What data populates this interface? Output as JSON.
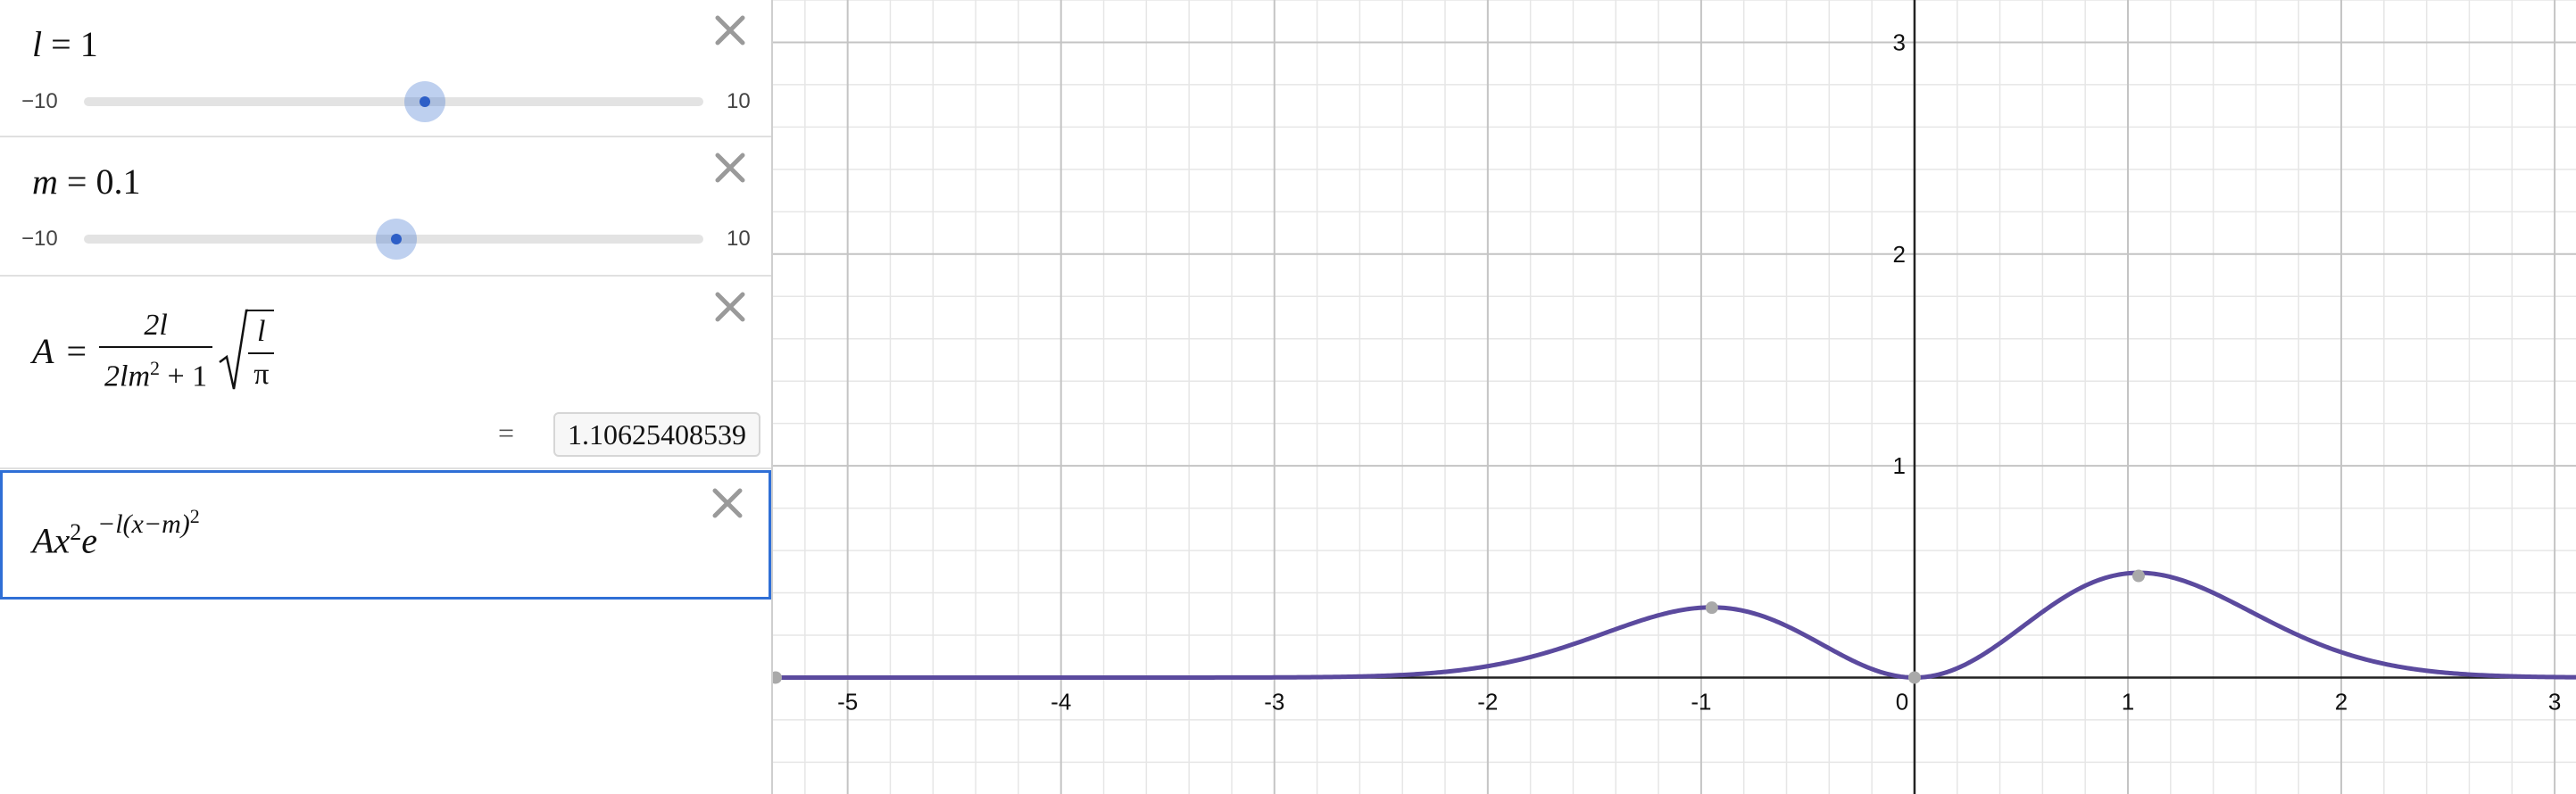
{
  "expressions": {
    "l": {
      "name": "l",
      "value": "1",
      "slider_min": "−10",
      "slider_max": "10",
      "slider_fraction": 0.55
    },
    "m": {
      "name": "m",
      "value": "0.1",
      "slider_min": "−10",
      "slider_max": "10",
      "slider_fraction": 0.505
    },
    "A": {
      "lhs": "A",
      "eq": "=",
      "num": "2l",
      "den_a": "2lm",
      "den_b": "+ 1",
      "sup2": "2",
      "sqrt_num": "l",
      "sqrt_den": "π",
      "result_eq": "=",
      "result": "1.10625408539"
    },
    "f": {
      "A": "A",
      "x": "x",
      "sup2": "2",
      "e": "e",
      "exp": "−l(x−m)",
      "exp_sup": "2"
    }
  },
  "icons": {
    "close": "close-icon"
  },
  "colors": {
    "curve": "#5b4a9e",
    "accent": "#2f6fd6",
    "point": "#a9a9a9"
  },
  "chart_data": {
    "type": "line",
    "title": "",
    "xlabel": "",
    "ylabel": "",
    "xlim": [
      -5.35,
      3.1
    ],
    "ylim": [
      -0.55,
      3.2
    ],
    "grid": true,
    "x_ticks": [
      "-5",
      "-4",
      "-3",
      "-2",
      "-1",
      "0",
      "1",
      "2",
      "3"
    ],
    "y_ticks": [
      "1",
      "2",
      "3"
    ],
    "function": "A*x^2*exp(-l*(x-m)^2)",
    "parameters": {
      "A": 1.10625408539,
      "l": 1,
      "m": 0.1
    },
    "series": [
      {
        "x": [
          -5.35,
          -5,
          -4,
          -3,
          -2.5,
          -2,
          -1.6,
          -1.3,
          -1.1,
          -0.95,
          -0.8,
          -0.6,
          -0.4,
          -0.2,
          0,
          0.2,
          0.4,
          0.6,
          0.8,
          1.05,
          1.2,
          1.4,
          1.6,
          1.8,
          2,
          2.5,
          3,
          3.1
        ],
        "y": [
          0,
          0,
          0,
          0,
          0.005,
          0.05,
          0.16,
          0.27,
          0.32,
          0.33,
          0.31,
          0.24,
          0.14,
          0.04,
          0,
          0.04,
          0.16,
          0.31,
          0.43,
          0.48,
          0.47,
          0.41,
          0.32,
          0.22,
          0.12,
          0.02,
          0.002,
          0.001
        ]
      }
    ],
    "points": [
      {
        "x": -0.95,
        "y": 0.33
      },
      {
        "x": 0,
        "y": 0
      },
      {
        "x": 1.05,
        "y": 0.48
      }
    ]
  }
}
